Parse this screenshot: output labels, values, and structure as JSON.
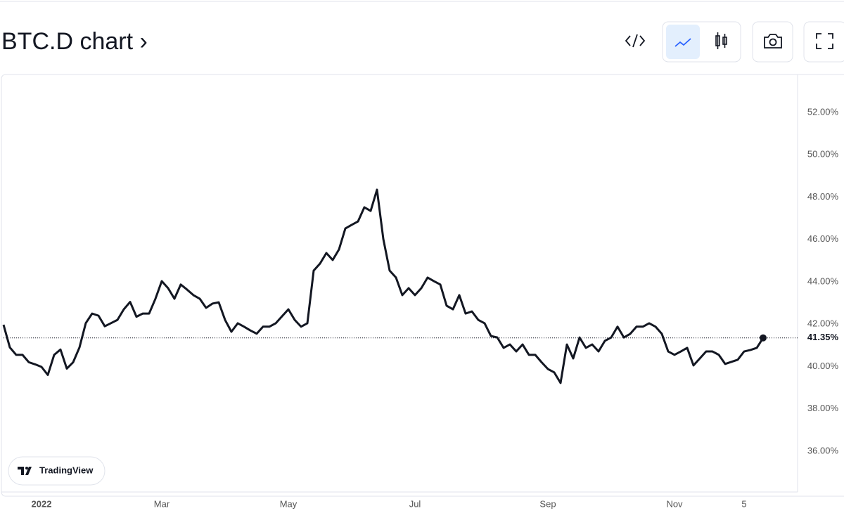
{
  "header": {
    "title": "BTC.D chart ›"
  },
  "badge": {
    "label": "TradingView"
  },
  "chart_data": {
    "type": "line",
    "categories": [
      null,
      null,
      null,
      null,
      null,
      null,
      "2022",
      null,
      null,
      null,
      null,
      null,
      null,
      null,
      null,
      null,
      null,
      null,
      null,
      null,
      null,
      null,
      null,
      null,
      null,
      "Mar",
      null,
      null,
      null,
      null,
      null,
      null,
      null,
      null,
      null,
      null,
      null,
      null,
      null,
      null,
      null,
      null,
      null,
      null,
      null,
      "May",
      null,
      null,
      null,
      null,
      null,
      null,
      null,
      null,
      null,
      null,
      null,
      null,
      null,
      null,
      null,
      null,
      null,
      null,
      null,
      "Jul",
      null,
      null,
      null,
      null,
      null,
      null,
      null,
      null,
      null,
      null,
      null,
      null,
      null,
      null,
      null,
      null,
      null,
      null,
      null,
      null,
      "Sep",
      null,
      null,
      null,
      null,
      null,
      null,
      null,
      null,
      null,
      null,
      null,
      null,
      null,
      null,
      null,
      null,
      null,
      null,
      null,
      "Nov",
      null,
      null,
      null,
      null,
      null,
      null,
      null,
      null,
      null,
      null,
      "5",
      null,
      null,
      null
    ],
    "series": [
      {
        "name": "BTC.D",
        "color": "#131722",
        "values": [
          41.97,
          40.9,
          40.55,
          40.55,
          40.2,
          40.1,
          39.98,
          39.6,
          40.55,
          40.8,
          39.9,
          40.2,
          40.9,
          42.05,
          42.5,
          42.4,
          41.9,
          42.05,
          42.2,
          42.7,
          43.05,
          42.35,
          42.5,
          42.5,
          43.2,
          44.03,
          43.7,
          43.2,
          43.87,
          43.63,
          43.37,
          43.2,
          42.77,
          42.97,
          43.03,
          42.2,
          41.64,
          42.04,
          41.88,
          41.7,
          41.55,
          41.88,
          41.88,
          42.04,
          42.37,
          42.7,
          42.2,
          41.88,
          42.04,
          44.53,
          44.86,
          45.36,
          45.03,
          45.53,
          46.52,
          46.69,
          46.85,
          47.52,
          47.35,
          48.35,
          46.02,
          44.53,
          44.2,
          43.37,
          43.7,
          43.37,
          43.7,
          44.2,
          44.03,
          43.87,
          42.87,
          42.7,
          43.37,
          42.5,
          42.6,
          42.2,
          42.04,
          41.44,
          41.37,
          40.88,
          41.04,
          40.71,
          41.04,
          40.55,
          40.55,
          40.2,
          39.88,
          39.72,
          39.22,
          41.04,
          40.38,
          41.37,
          40.88,
          41.04,
          40.71,
          41.21,
          41.37,
          41.88,
          41.37,
          41.54,
          41.88,
          41.88,
          42.04,
          41.88,
          41.54,
          40.71,
          40.55,
          40.71,
          40.88,
          40.05,
          40.38,
          40.71,
          40.71,
          40.55,
          40.12,
          40.22,
          40.32,
          40.71,
          40.78,
          40.88,
          41.35
        ]
      }
    ],
    "last_value_label": "41.35%",
    "ylim": [
      34.07,
      53.76
    ],
    "yticks": [
      {
        "value": 36,
        "label": "36.00%"
      },
      {
        "value": 38,
        "label": "38.00%"
      },
      {
        "value": 40,
        "label": "40.00%"
      },
      {
        "value": 42,
        "label": "42.00%"
      },
      {
        "value": 44,
        "label": "44.00%"
      },
      {
        "value": 46,
        "label": "46.00%"
      },
      {
        "value": 48,
        "label": "48.00%"
      },
      {
        "value": 50,
        "label": "50.00%"
      },
      {
        "value": 52,
        "label": "52.00%"
      }
    ],
    "grid": false
  }
}
